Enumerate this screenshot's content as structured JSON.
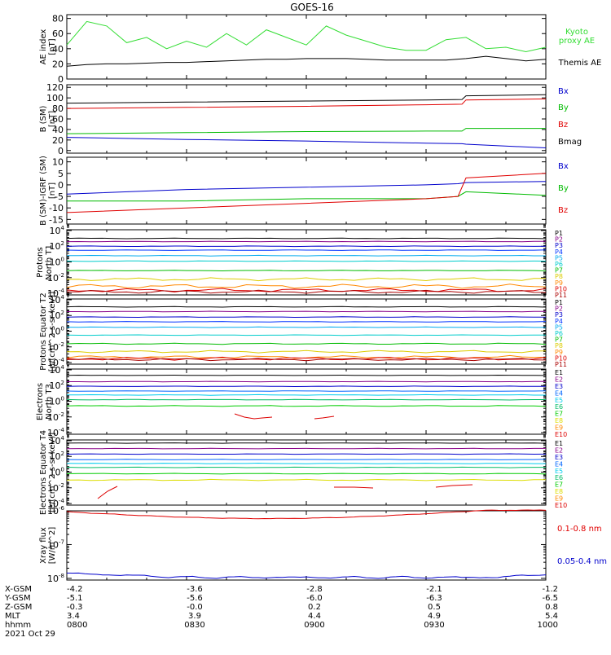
{
  "title": "GOES-16",
  "colors": {
    "black": "#000000",
    "red": "#e00000",
    "green": "#00bb00",
    "blue": "#0000cc",
    "ae_green": "#33dd33"
  },
  "chart_data": [
    {
      "type": "line",
      "ylabel": "AE index [nT]",
      "ylim": [
        0,
        85
      ],
      "yticks": [
        "0",
        "20",
        "40",
        "60",
        "80"
      ],
      "x": [
        "0800",
        "0805",
        "0810",
        "0815",
        "0820",
        "0825",
        "0830",
        "0835",
        "0840",
        "0845",
        "0850",
        "0855",
        "0900",
        "0905",
        "0910",
        "0915",
        "0920",
        "0925",
        "0930",
        "0935",
        "0940",
        "0945",
        "0950",
        "0955",
        "1000"
      ],
      "series": [
        {
          "name": "Kyoto proxy AE",
          "color": "#33dd33",
          "values": [
            45,
            76,
            70,
            48,
            55,
            40,
            50,
            42,
            60,
            45,
            65,
            55,
            45,
            70,
            58,
            50,
            42,
            38,
            38,
            52,
            55,
            40,
            42,
            36,
            42
          ]
        },
        {
          "name": "Themis AE",
          "color": "#000000",
          "values": [
            17,
            19,
            20,
            20,
            21,
            22,
            22,
            23,
            24,
            25,
            26,
            26,
            27,
            27,
            27,
            26,
            25,
            25,
            25,
            25,
            27,
            30,
            27,
            24,
            26
          ]
        }
      ]
    },
    {
      "type": "line",
      "ylabel": "B (SM) [nT]",
      "ylim": [
        -5,
        125
      ],
      "yticks": [
        "0",
        "20",
        "40",
        "60",
        "80",
        "100",
        "120"
      ],
      "x": [
        "0800",
        "0830",
        "0900",
        "0930",
        "0939",
        "0940",
        "1000"
      ],
      "series": [
        {
          "name": "Bx",
          "color": "#0000cc",
          "values": [
            25,
            21,
            18,
            14,
            13,
            12,
            5
          ]
        },
        {
          "name": "By",
          "color": "#00bb00",
          "values": [
            32,
            34,
            36,
            37,
            37,
            42,
            42
          ]
        },
        {
          "name": "Bz",
          "color": "#e00000",
          "values": [
            80,
            82,
            84,
            87,
            88,
            96,
            98
          ]
        },
        {
          "name": "Bmag",
          "color": "#000000",
          "values": [
            90,
            92,
            94,
            96,
            97,
            104,
            106
          ]
        }
      ]
    },
    {
      "type": "line",
      "ylabel": "B (SM)-IGRF (SM) [nT]",
      "ylim": [
        -17,
        12
      ],
      "yticks": [
        "-15",
        "-10",
        "-5",
        "0",
        "5",
        "10"
      ],
      "x": [
        "0800",
        "0830",
        "0900",
        "0930",
        "0938",
        "0940",
        "1000"
      ],
      "series": [
        {
          "name": "Bx",
          "color": "#0000cc",
          "values": [
            -4,
            -2,
            -1,
            0,
            0.5,
            1,
            1.5
          ]
        },
        {
          "name": "By",
          "color": "#00bb00",
          "values": [
            -7,
            -7,
            -6,
            -6,
            -5,
            -3,
            -4.5
          ]
        },
        {
          "name": "Bz",
          "color": "#e00000",
          "values": [
            -12,
            -10,
            -8,
            -6,
            -5,
            3,
            5
          ]
        }
      ]
    },
    {
      "type": "line",
      "ylabel": "Protons North T1",
      "yscale": "log",
      "yticks": [
        "10^4",
        "10^2",
        "10^0",
        "10^-2",
        "10^-4"
      ],
      "legend": [
        "P1",
        "P2",
        "P3",
        "P4",
        "P5",
        "P6",
        "P7",
        "P8",
        "P9",
        "P10",
        "P11"
      ]
    },
    {
      "type": "line",
      "ylabel": "Protons Equator T2 [p/(cm^2-s-sr-keV)]",
      "yscale": "log",
      "yticks": [
        "10^4",
        "10^2",
        "10^0",
        "10^-2",
        "10^-4"
      ],
      "legend": [
        "P1",
        "P2",
        "P3",
        "P4",
        "P5",
        "P6",
        "P7",
        "P8",
        "P9",
        "P10",
        "P11"
      ]
    },
    {
      "type": "line",
      "ylabel": "Electrons North T3",
      "yscale": "log",
      "yticks": [
        "10^4",
        "10^2",
        "10^0",
        "10^-2",
        "10^-4"
      ],
      "legend": [
        "E1",
        "E2",
        "E3",
        "E4",
        "E5",
        "E6",
        "E7",
        "E8",
        "E9",
        "E10"
      ]
    },
    {
      "type": "line",
      "ylabel": "Electrons Equator T4 [e/(cm^2-s-sr-keV)]",
      "yscale": "log",
      "yticks": [
        "10^4",
        "10^2",
        "10^0",
        "10^-2",
        "10^-4"
      ],
      "legend": [
        "E1",
        "E2",
        "E3",
        "E4",
        "E5",
        "E6",
        "E7",
        "E8",
        "E9",
        "E10"
      ]
    },
    {
      "type": "line",
      "ylabel": "Xray flux [W/m^2]",
      "yscale": "log",
      "yticks": [
        "10^-6",
        "10^-7",
        "10^-8"
      ],
      "series": [
        {
          "name": "0.1-0.8 nm",
          "color": "#e00000"
        },
        {
          "name": "0.05-0.4 nm",
          "color": "#0000cc"
        }
      ]
    }
  ],
  "xaxis": {
    "row_labels": [
      "X-GSM",
      "Y-GSM",
      "Z-GSM",
      "MLT",
      "hhmm"
    ],
    "date": "2021 Oct 29",
    "columns": [
      [
        "-4.2",
        "-5.1",
        "-0.3",
        "3.4",
        "0800"
      ],
      [
        "-3.6",
        "-5.6",
        "-0.0",
        "3.9",
        "0830"
      ],
      [
        "-2.8",
        "-6.0",
        "0.2",
        "4.4",
        "0900"
      ],
      [
        "-2.1",
        "-6.3",
        "0.5",
        "4.9",
        "0930"
      ],
      [
        "-1.2",
        "-6.5",
        "0.8",
        "5.4",
        "1000"
      ]
    ]
  }
}
